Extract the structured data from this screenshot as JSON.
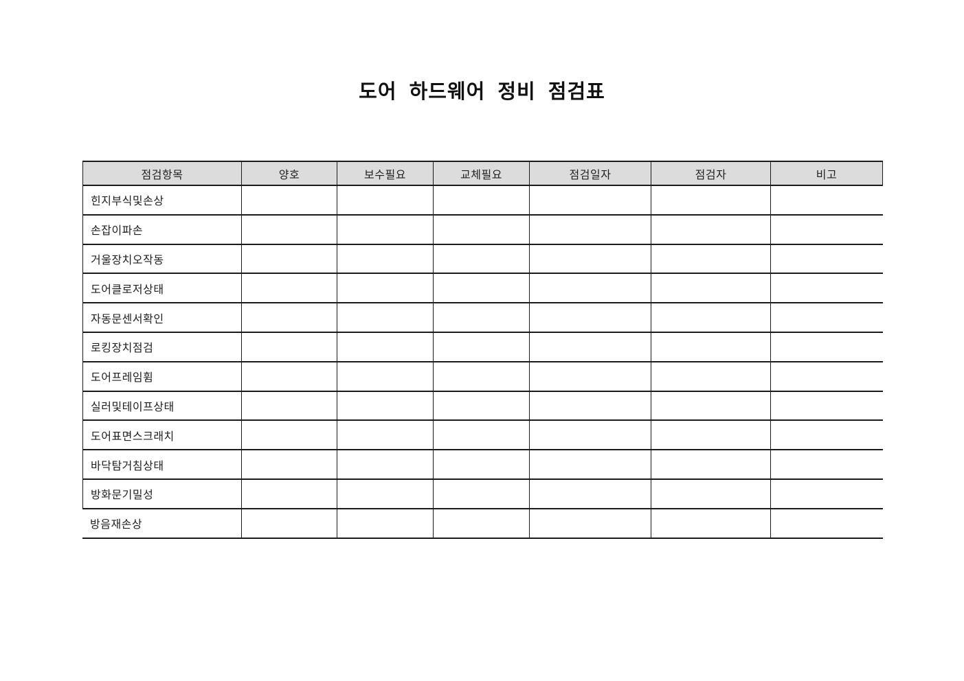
{
  "page": {
    "title": "도어 하드웨어 정비 점검표"
  },
  "table": {
    "header_bg": "#dcdcdc",
    "border_color": "#1a1a1a",
    "headers": [
      "점검항목",
      "양호",
      "보수필요",
      "교체필요",
      "점검일자",
      "점검자",
      "비고"
    ],
    "rows": [
      {
        "label": "힌지부식및손상",
        "good": "",
        "repair": "",
        "replace": "",
        "date": "",
        "inspector": "",
        "remarks": ""
      },
      {
        "label": "손잡이파손",
        "good": "",
        "repair": "",
        "replace": "",
        "date": "",
        "inspector": "",
        "remarks": ""
      },
      {
        "label": "거울장치오작동",
        "good": "",
        "repair": "",
        "replace": "",
        "date": "",
        "inspector": "",
        "remarks": ""
      },
      {
        "label": "도어클로저상태",
        "good": "",
        "repair": "",
        "replace": "",
        "date": "",
        "inspector": "",
        "remarks": ""
      },
      {
        "label": "자동문센서확인",
        "good": "",
        "repair": "",
        "replace": "",
        "date": "",
        "inspector": "",
        "remarks": ""
      },
      {
        "label": "로킹장치점검",
        "good": "",
        "repair": "",
        "replace": "",
        "date": "",
        "inspector": "",
        "remarks": ""
      },
      {
        "label": "도어프레임휨",
        "good": "",
        "repair": "",
        "replace": "",
        "date": "",
        "inspector": "",
        "remarks": ""
      },
      {
        "label": "실러및테이프상태",
        "good": "",
        "repair": "",
        "replace": "",
        "date": "",
        "inspector": "",
        "remarks": ""
      },
      {
        "label": "도어표면스크래치",
        "good": "",
        "repair": "",
        "replace": "",
        "date": "",
        "inspector": "",
        "remarks": ""
      },
      {
        "label": "바닥탐거침상태",
        "good": "",
        "repair": "",
        "replace": "",
        "date": "",
        "inspector": "",
        "remarks": ""
      },
      {
        "label": "방화문기밀성",
        "good": "",
        "repair": "",
        "replace": "",
        "date": "",
        "inspector": "",
        "remarks": ""
      },
      {
        "label": "방음재손상",
        "good": "",
        "repair": "",
        "replace": "",
        "date": "",
        "inspector": "",
        "remarks": ""
      }
    ]
  }
}
